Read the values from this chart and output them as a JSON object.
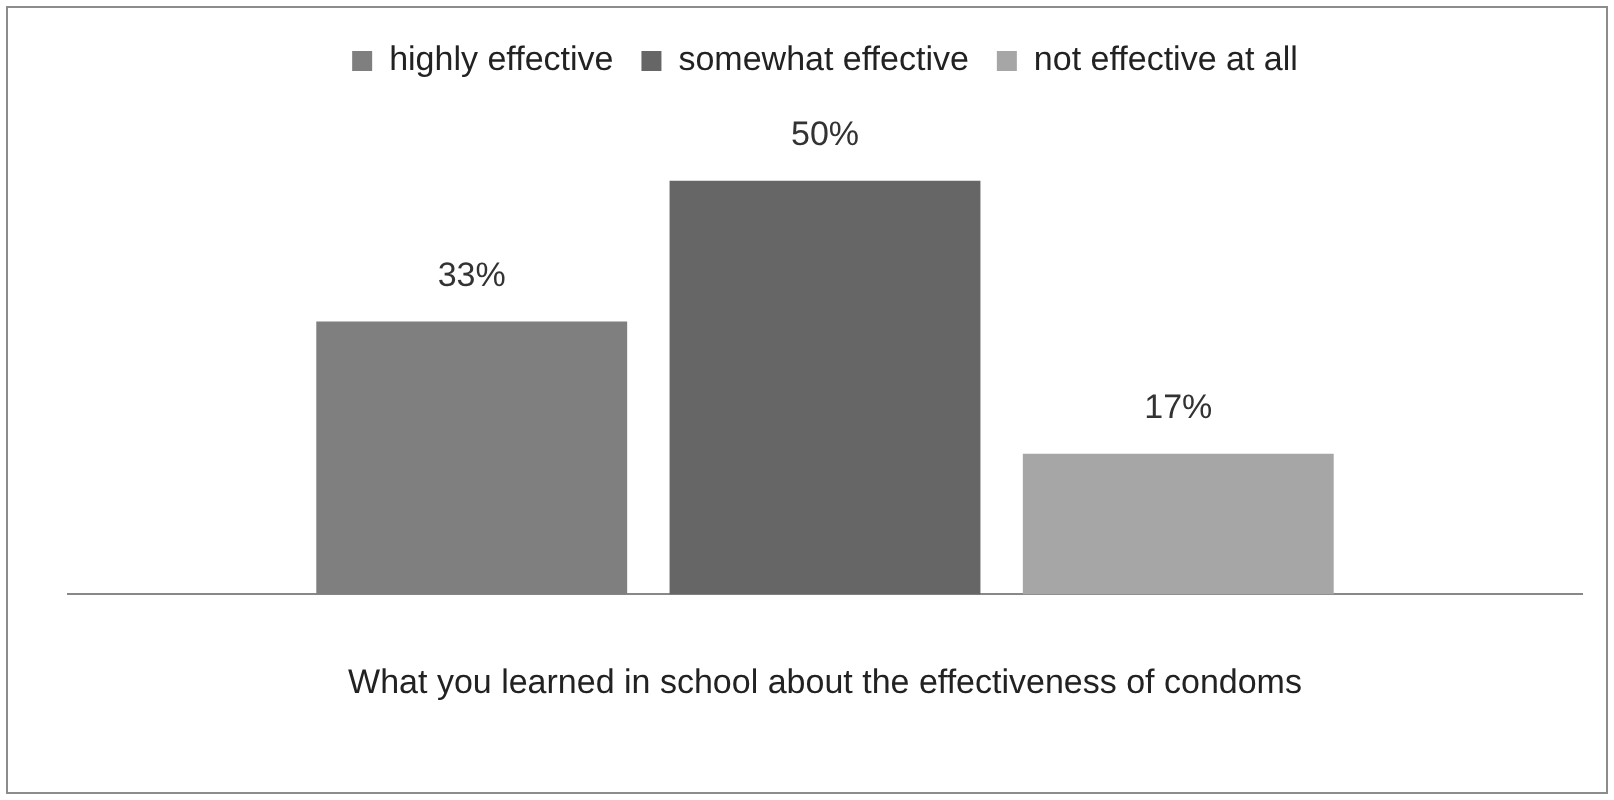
{
  "chart_data": {
    "type": "bar",
    "categories": [
      null
    ],
    "xlabel": "What you learned in school about the effectiveness of condoms",
    "series": [
      {
        "name": "highly effective",
        "color": "#7f7f7f",
        "values": [
          33
        ],
        "value_labels": [
          "33%"
        ]
      },
      {
        "name": "somewhat effective",
        "color": "#666666",
        "values": [
          50
        ],
        "value_labels": [
          "50%"
        ]
      },
      {
        "name": "not effective at all",
        "color": "#a6a6a6",
        "values": [
          17
        ],
        "value_labels": [
          "17%"
        ]
      }
    ],
    "legend": "top",
    "grid": false
  }
}
